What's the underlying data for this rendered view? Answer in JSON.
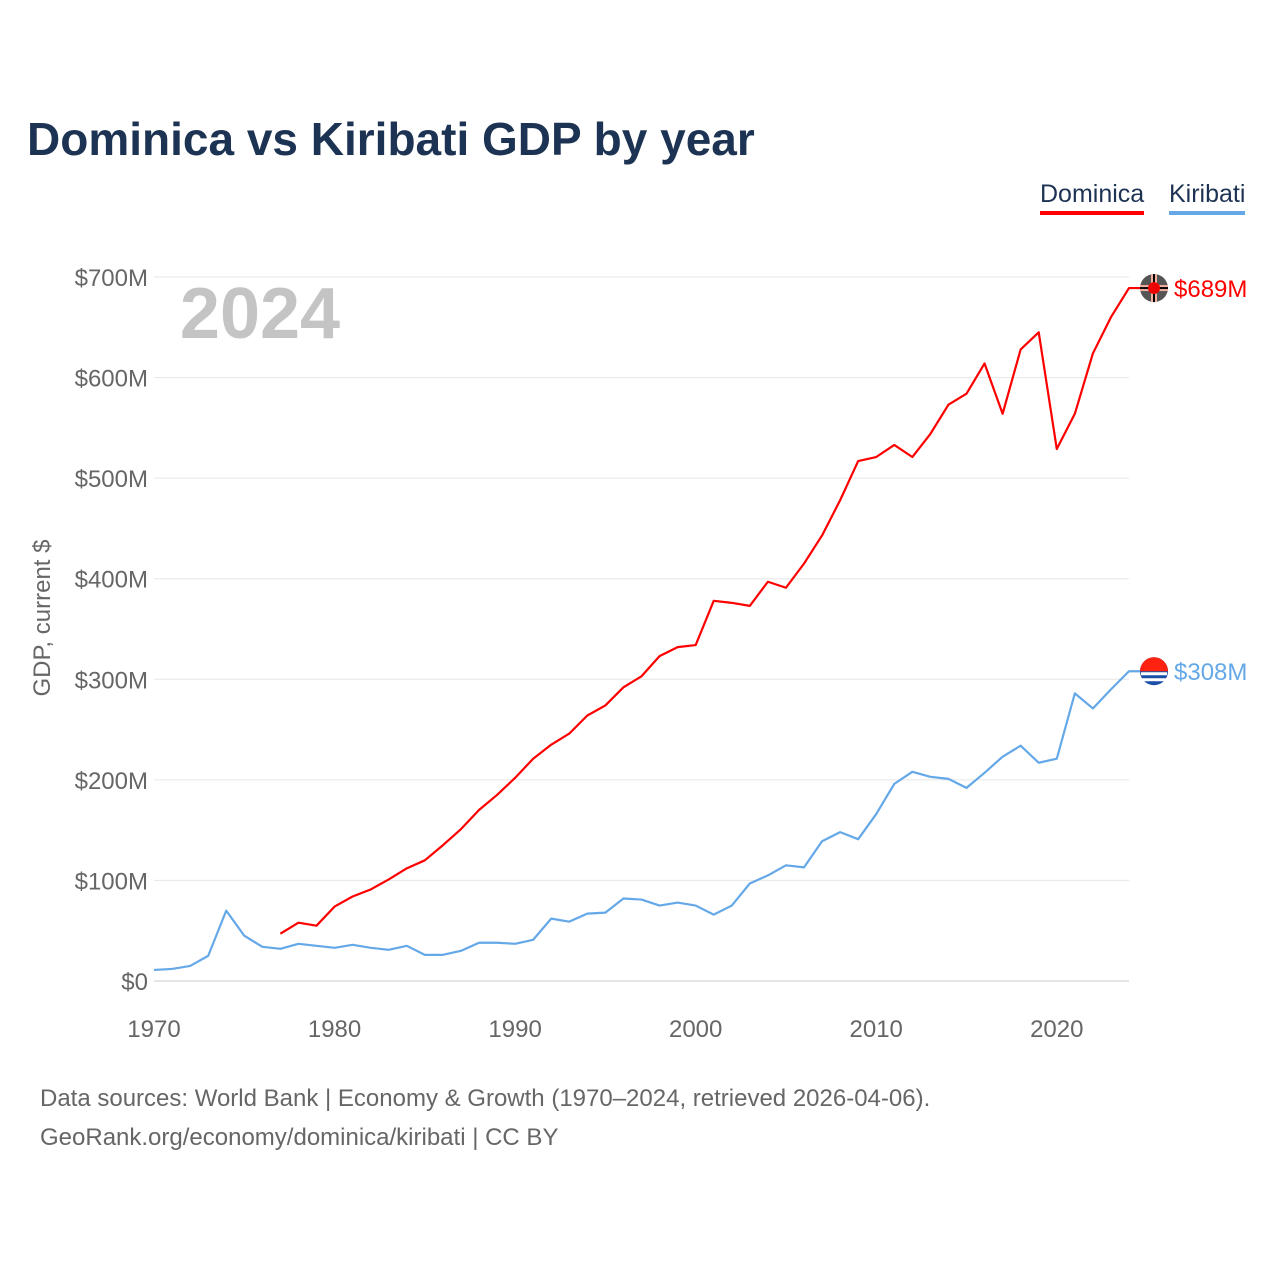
{
  "chart_data": {
    "type": "line",
    "title": "Dominica vs Kiribati GDP by year",
    "ylabel": "GDP, current $",
    "xlabel": "",
    "year_label": "2024",
    "xlim": [
      1970,
      2024
    ],
    "ylim": [
      0,
      700
    ],
    "x_ticks": [
      "1970",
      "1980",
      "1990",
      "2000",
      "2010",
      "2020"
    ],
    "y_ticks": [
      {
        "value": 0,
        "label": "$0"
      },
      {
        "value": 100,
        "label": "$100M"
      },
      {
        "value": 200,
        "label": "$200M"
      },
      {
        "value": 300,
        "label": "$300M"
      },
      {
        "value": 400,
        "label": "$400M"
      },
      {
        "value": 500,
        "label": "$500M"
      },
      {
        "value": 600,
        "label": "$600M"
      },
      {
        "value": 700,
        "label": "$700M"
      }
    ],
    "legend_position": "top-right",
    "series": [
      {
        "name": "Dominica",
        "color": "#ff0000",
        "end_label": "$689M",
        "start_year": 1977,
        "values": [
          47,
          58,
          55,
          74,
          84,
          91,
          101,
          112,
          120,
          135,
          151,
          170,
          185,
          202,
          221,
          235,
          246,
          264,
          274,
          292,
          303,
          323,
          332,
          334,
          378,
          376,
          373,
          397,
          391,
          415,
          443,
          478,
          517,
          521,
          533,
          521,
          544,
          573,
          584,
          614,
          564,
          628,
          645,
          529,
          564,
          624,
          660,
          689
        ]
      },
      {
        "name": "Kiribati",
        "color": "#64a8e8",
        "end_label": "$308M",
        "start_year": 1970,
        "values": [
          11,
          12,
          15,
          25,
          70,
          45,
          34,
          32,
          37,
          35,
          33,
          36,
          33,
          31,
          35,
          26,
          26,
          30,
          38,
          38,
          37,
          41,
          62,
          59,
          67,
          68,
          82,
          81,
          75,
          78,
          75,
          66,
          75,
          97,
          105,
          115,
          113,
          139,
          148,
          141,
          166,
          196,
          208,
          203,
          201,
          192,
          207,
          223,
          234,
          217,
          221,
          286,
          271,
          290,
          308
        ]
      }
    ]
  },
  "footer": {
    "line1": "Data sources: World Bank | Economy & Growth (1970–2024, retrieved 2026-04-06).",
    "line2": "GeoRank.org/economy/dominica/kiribati | CC BY"
  }
}
